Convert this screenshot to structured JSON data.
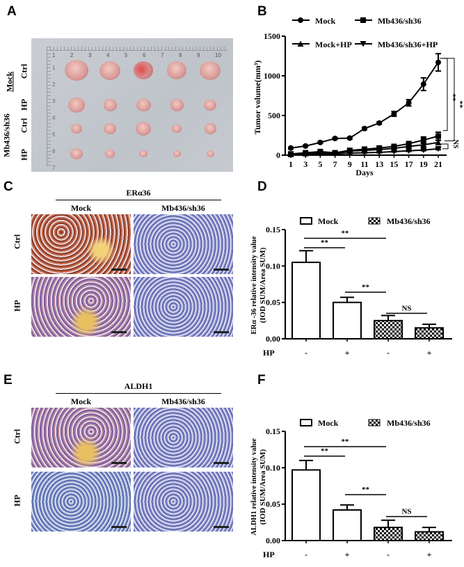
{
  "panels": {
    "a": "A",
    "b": "B",
    "c": "C",
    "d": "D",
    "e": "E",
    "f": "F"
  },
  "panel_a": {
    "group_mock": "Mock",
    "group_sh": "Mb436/sh36",
    "ctrl": "Ctrl",
    "hp": "HP",
    "ruler_numbers": [
      "1",
      "2",
      "3",
      "4",
      "5",
      "6",
      "7",
      "8",
      "9",
      "10"
    ],
    "ruler_v": [
      "1",
      "2",
      "3",
      "4",
      "5",
      "6",
      "7"
    ]
  },
  "panel_c": {
    "title": "ERα36",
    "col1": "Mock",
    "col2": "Mb436/sh36",
    "row1": "Ctrl",
    "row2": "HP"
  },
  "panel_e": {
    "title": "ALDH1",
    "col1": "Mock",
    "col2": "Mb436/sh36",
    "row1": "Ctrl",
    "row2": "HP"
  },
  "chart_data": [
    {
      "type": "line",
      "title": "",
      "xlabel": "Days",
      "ylabel": "Tumor volume(mm³)",
      "ylim": [
        0,
        1500
      ],
      "yticks": [
        "0",
        "500",
        "1000",
        "1500"
      ],
      "x": [
        1,
        3,
        5,
        7,
        9,
        11,
        13,
        15,
        17,
        19,
        21
      ],
      "series": [
        {
          "name": "Mock",
          "marker": "circle",
          "values": [
            90,
            115,
            160,
            210,
            215,
            335,
            405,
            520,
            660,
            895,
            1170
          ],
          "errors": [
            10,
            10,
            12,
            12,
            12,
            15,
            15,
            30,
            40,
            80,
            110
          ]
        },
        {
          "name": "Mb436/sh36",
          "marker": "square",
          "values": [
            15,
            30,
            45,
            30,
            60,
            75,
            90,
            110,
            145,
            190,
            240
          ],
          "errors": [
            5,
            5,
            8,
            5,
            10,
            10,
            12,
            15,
            20,
            40,
            50
          ]
        },
        {
          "name": "Mock+HP",
          "marker": "triangle",
          "values": [
            10,
            20,
            30,
            25,
            50,
            60,
            70,
            85,
            110,
            130,
            160
          ],
          "errors": [
            4,
            5,
            6,
            5,
            8,
            8,
            10,
            12,
            15,
            20,
            25
          ]
        },
        {
          "name": "Mb436/sh36+HP",
          "marker": "triangle-down",
          "values": [
            5,
            10,
            15,
            15,
            25,
            30,
            35,
            45,
            55,
            65,
            80
          ],
          "errors": [
            3,
            3,
            4,
            4,
            5,
            5,
            6,
            6,
            8,
            10,
            12
          ]
        }
      ],
      "annotations": [
        "**",
        "**",
        "NS"
      ]
    },
    {
      "type": "bar",
      "ylabel": [
        "ERα -36 relative intensity value",
        "(IOD SUM/Area SUM)"
      ],
      "ylim": [
        0,
        0.15
      ],
      "yticks": [
        "0.00",
        "0.05",
        "0.10",
        "0.15"
      ],
      "legend": [
        "Mock",
        "Mb436/sh36"
      ],
      "row_label": "HP",
      "categories": [
        "-",
        "+",
        "-",
        "+"
      ],
      "groups": [
        "Mock",
        "Mock",
        "Mb436/sh36",
        "Mb436/sh36"
      ],
      "values": [
        0.105,
        0.05,
        0.025,
        0.015
      ],
      "errors": [
        0.016,
        0.007,
        0.007,
        0.005
      ],
      "sig": [
        {
          "from": 0,
          "to": 1,
          "y": 0.125,
          "label": "**"
        },
        {
          "from": 0,
          "to": 2,
          "y": 0.138,
          "label": "**"
        },
        {
          "from": 1,
          "to": 2,
          "y": 0.064,
          "label": "**"
        },
        {
          "from": 2,
          "to": 3,
          "y": 0.035,
          "label": "NS"
        }
      ]
    },
    {
      "type": "bar",
      "ylabel": [
        "ALDH1 relative intensity value",
        "(IOD SUM/Area SUM)"
      ],
      "ylim": [
        0,
        0.15
      ],
      "yticks": [
        "0.00",
        "0.05",
        "0.10",
        "0.15"
      ],
      "legend": [
        "Mock",
        "Mb436/sh36"
      ],
      "row_label": "HP",
      "categories": [
        "-",
        "+",
        "-",
        "+"
      ],
      "groups": [
        "Mock",
        "Mock",
        "Mb436/sh36",
        "Mb436/sh36"
      ],
      "values": [
        0.097,
        0.042,
        0.018,
        0.012
      ],
      "errors": [
        0.013,
        0.007,
        0.01,
        0.006
      ],
      "sig": [
        {
          "from": 0,
          "to": 1,
          "y": 0.116,
          "label": "**"
        },
        {
          "from": 0,
          "to": 2,
          "y": 0.129,
          "label": "**"
        },
        {
          "from": 1,
          "to": 2,
          "y": 0.063,
          "label": "**"
        },
        {
          "from": 2,
          "to": 3,
          "y": 0.033,
          "label": "NS"
        }
      ]
    }
  ]
}
